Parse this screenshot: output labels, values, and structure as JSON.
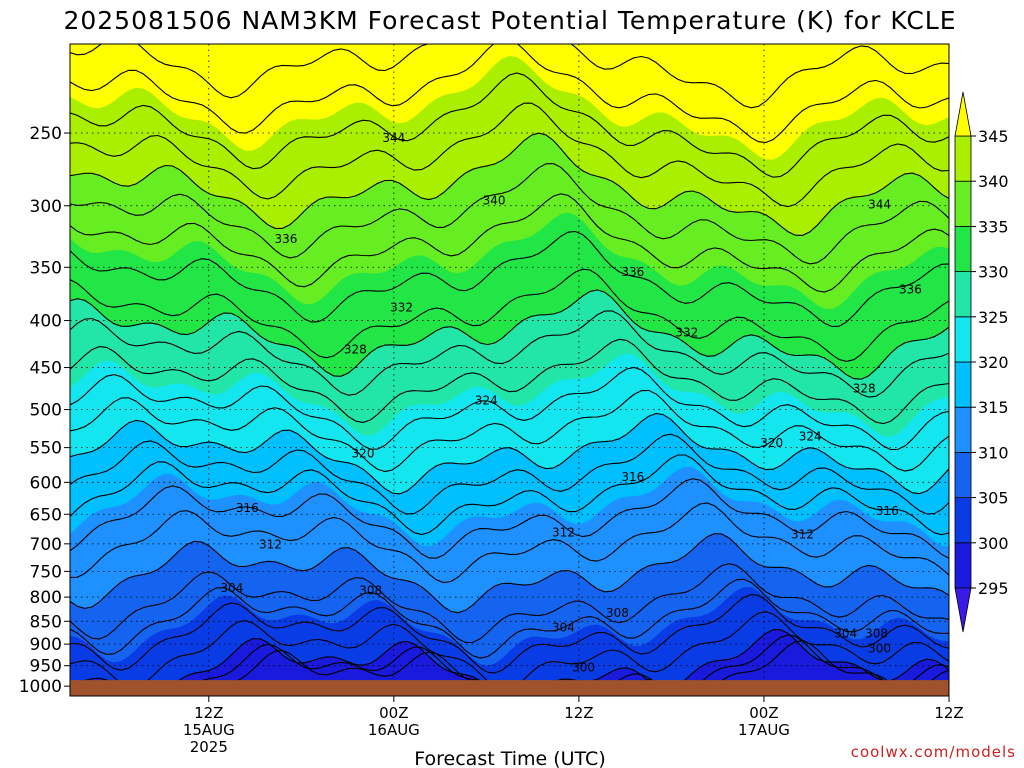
{
  "chart_data": {
    "type": "heatmap",
    "title": "2025081506 NAM3KM Forecast Potential Temperature (K) for KCLE",
    "xlabel": "Forecast Time (UTC)",
    "y_axis": {
      "quantity": "pressure (hPa)",
      "reversed": true,
      "scale": "log",
      "range": [
        200,
        1025
      ],
      "ticks": [
        250,
        300,
        350,
        400,
        450,
        500,
        550,
        600,
        650,
        700,
        750,
        800,
        850,
        900,
        950,
        1000
      ]
    },
    "x_axis": {
      "range_hours": [
        -3,
        54
      ],
      "ticks": [
        {
          "hour": 6,
          "lines": [
            "12Z",
            "15AUG",
            "2025"
          ]
        },
        {
          "hour": 18,
          "lines": [
            "00Z",
            "16AUG"
          ]
        },
        {
          "hour": 30,
          "lines": [
            "12Z"
          ]
        },
        {
          "hour": 42,
          "lines": [
            "00Z",
            "17AUG"
          ]
        },
        {
          "hour": 54,
          "lines": [
            "12Z"
          ]
        }
      ]
    },
    "colorbar": {
      "ticks": [
        295,
        300,
        305,
        310,
        315,
        320,
        325,
        330,
        335,
        340,
        345
      ],
      "colors": [
        "#1a1adc",
        "#0a3ce6",
        "#1464f0",
        "#1e90ff",
        "#00bfff",
        "#14e6f0",
        "#22e6a8",
        "#22e646",
        "#66ee22",
        "#aaee00",
        "#ffff00"
      ],
      "extend": "both"
    },
    "ground_color": "#a0522d",
    "contours": [
      {
        "value": 300,
        "labels": [
          {
            "hour": 30.3,
            "p": 954
          },
          {
            "hour": 49.5,
            "p": 910
          }
        ]
      },
      {
        "value": 304,
        "labels": [
          {
            "hour": 7.5,
            "p": 782
          },
          {
            "hour": 29,
            "p": 863
          },
          {
            "hour": 47.3,
            "p": 876
          }
        ]
      },
      {
        "value": 308,
        "labels": [
          {
            "hour": 16.5,
            "p": 787
          },
          {
            "hour": 32.5,
            "p": 832
          },
          {
            "hour": 49.3,
            "p": 876
          }
        ]
      },
      {
        "value": 312,
        "labels": [
          {
            "hour": 10,
            "p": 701
          },
          {
            "hour": 29,
            "p": 680
          },
          {
            "hour": 44.5,
            "p": 684
          }
        ]
      },
      {
        "value": 316,
        "labels": [
          {
            "hour": 8.5,
            "p": 640
          },
          {
            "hour": 33.5,
            "p": 592
          },
          {
            "hour": 50,
            "p": 645
          }
        ]
      },
      {
        "value": 320,
        "labels": [
          {
            "hour": 16,
            "p": 558
          },
          {
            "hour": 42.5,
            "p": 544
          }
        ]
      },
      {
        "value": 324,
        "labels": [
          {
            "hour": 24,
            "p": 489
          },
          {
            "hour": 45,
            "p": 535
          }
        ]
      },
      {
        "value": 328,
        "labels": [
          {
            "hour": 15.5,
            "p": 430
          },
          {
            "hour": 48.5,
            "p": 474
          }
        ]
      },
      {
        "value": 332,
        "labels": [
          {
            "hour": 18.5,
            "p": 387
          },
          {
            "hour": 37,
            "p": 412
          }
        ]
      },
      {
        "value": 336,
        "labels": [
          {
            "hour": 11,
            "p": 326
          },
          {
            "hour": 33.5,
            "p": 354
          },
          {
            "hour": 51.5,
            "p": 370
          }
        ]
      },
      {
        "value": 340,
        "labels": [
          {
            "hour": 24.5,
            "p": 296
          }
        ]
      },
      {
        "value": 344,
        "labels": [
          {
            "hour": 18,
            "p": 253
          },
          {
            "hour": 49.5,
            "p": 299
          }
        ]
      }
    ]
  },
  "credit": "coolwx.com/models"
}
